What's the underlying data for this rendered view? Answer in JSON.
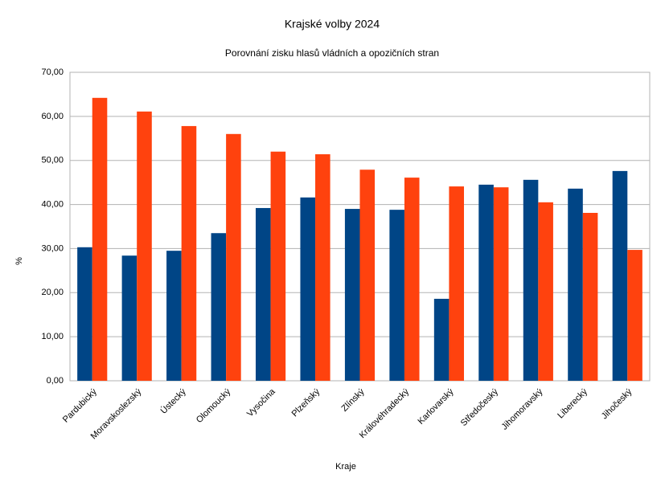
{
  "chart_data": {
    "type": "bar",
    "title": "Krajské volby 2024",
    "subtitle": "Porovnání zisku hlasů vládních a opozičních stran",
    "xlabel": "Kraje",
    "ylabel": "%",
    "categories": [
      "Pardubický",
      "Moravskoslezský",
      "Ústecký",
      "Olomoucký",
      "Vysočina",
      "Plzeňský",
      "Zlínský",
      "Královéhradecký",
      "Karlovarský",
      "Středočeský",
      "Jihomoravský",
      "Liberecký",
      "Jihočeský"
    ],
    "series": [
      {
        "color": "#004586",
        "values": [
          30.3,
          28.4,
          29.5,
          33.5,
          39.2,
          41.6,
          39.0,
          38.8,
          18.6,
          44.5,
          45.6,
          43.6,
          47.6
        ]
      },
      {
        "color": "#ff420e",
        "values": [
          64.2,
          61.1,
          57.8,
          56.0,
          52.0,
          51.4,
          47.9,
          46.1,
          44.1,
          43.9,
          40.5,
          38.1,
          29.7
        ]
      }
    ],
    "ylim": [
      0,
      70
    ],
    "yticks": [
      {
        "value": 0,
        "label": "0,00"
      },
      {
        "value": 10,
        "label": "10,00"
      },
      {
        "value": 20,
        "label": "20,00"
      },
      {
        "value": 30,
        "label": "30,00"
      },
      {
        "value": 40,
        "label": "40,00"
      },
      {
        "value": 50,
        "label": "50,00"
      },
      {
        "value": 60,
        "label": "60,00"
      },
      {
        "value": 70,
        "label": "70,00"
      }
    ],
    "grid": true
  }
}
